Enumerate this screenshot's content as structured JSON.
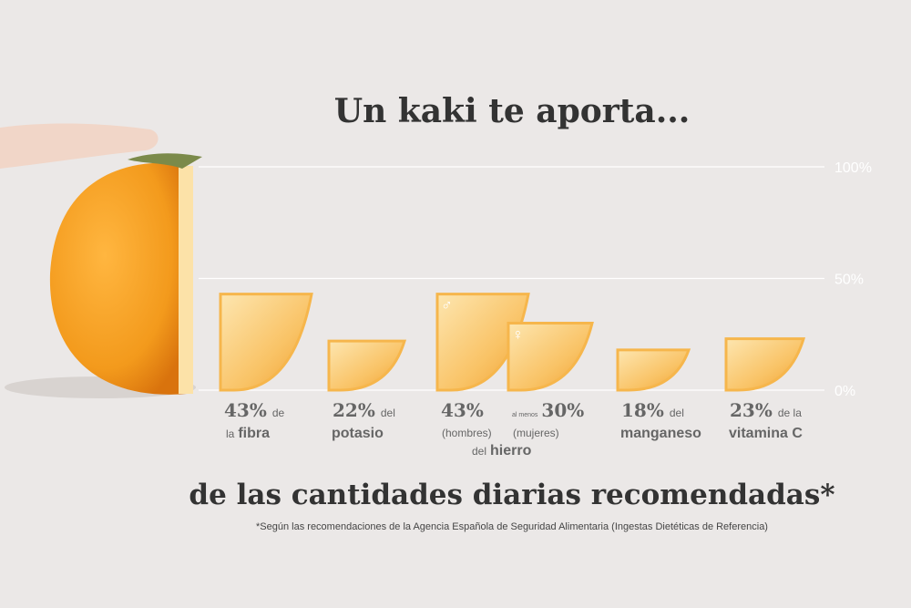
{
  "chart_data": {
    "type": "bar",
    "title": "Un kaki te aporta...",
    "subtitle": "de las cantidades diarias recomendadas*",
    "footnote": "*Según las recomendaciones de la Agencia Española de Seguridad Alimentaria (Ingestas Dietéticas de Referencia)",
    "values": [
      43,
      22,
      43,
      30,
      18,
      23
    ],
    "value_labels": [
      "43%",
      "22%",
      "43%",
      "30%",
      "18%",
      "23%"
    ],
    "labels": [
      {
        "after": "de",
        "before": "la",
        "name": "fibra"
      },
      {
        "after": "del",
        "name": "potasio"
      },
      {
        "symbol": "♂",
        "note": "(hombres)"
      },
      {
        "prefix": "al menos",
        "symbol": "♀",
        "note": "(mujeres)"
      },
      {
        "after": "del",
        "name": "manganeso"
      },
      {
        "after": "de la",
        "name": "vitamina C"
      }
    ],
    "group_label": {
      "before": "del",
      "name": "hierro"
    },
    "color": "#f6b64c",
    "ylim": [
      0,
      100
    ],
    "yticks": [
      {
        "value": 0,
        "label": "0%"
      },
      {
        "value": 50,
        "label": "50%"
      },
      {
        "value": 100,
        "label": "100%"
      }
    ],
    "grid": true
  }
}
